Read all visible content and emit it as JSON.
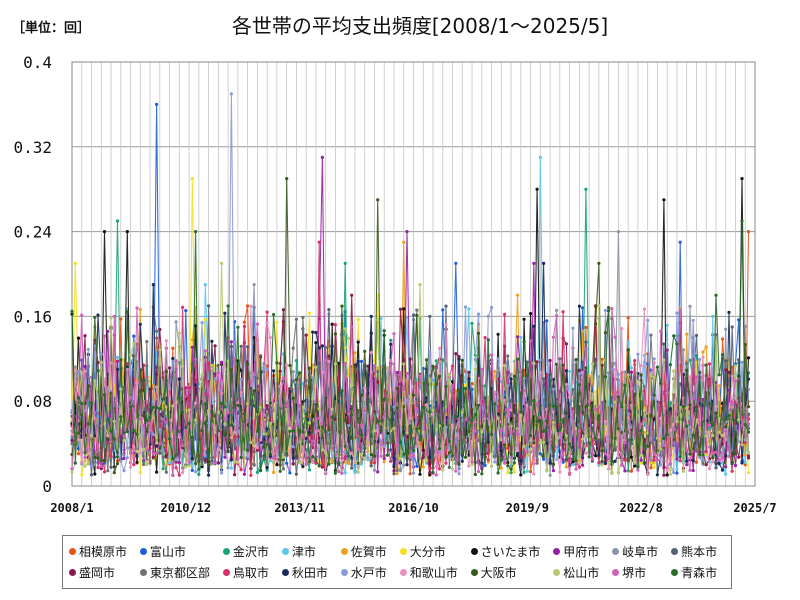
{
  "chart_data": {
    "type": "line",
    "unit_label": "［単位：回］",
    "title": "各世帯の平均支出頻度[2008/1～2025/5]",
    "xlabel": "",
    "ylabel": "",
    "ylim": [
      0,
      0.4
    ],
    "yticks": [
      "0",
      "0.08",
      "0.16",
      "0.24",
      "0.32",
      "0.4"
    ],
    "ytick_values": [
      0,
      0.08,
      0.16,
      0.24,
      0.32,
      0.4
    ],
    "xlim": [
      2008.0,
      2025.5
    ],
    "xticks": [
      "2008/1",
      "2010/12",
      "2013/11",
      "2016/10",
      "2019/9",
      "2022/8",
      "2025/7"
    ],
    "xtick_values": [
      2008.0,
      2010.917,
      2013.833,
      2016.75,
      2019.667,
      2022.583,
      2025.5
    ],
    "grid": true,
    "legend_position": "bottom",
    "series": [
      {
        "name": "相模原市",
        "color": "#e8541a",
        "peaks": [
          [
            2025.3,
            0.24
          ],
          [
            2010.6,
            0.13
          ],
          [
            2016.5,
            0.15
          ]
        ]
      },
      {
        "name": "富山市",
        "color": "#1f5fd6",
        "peaks": [
          [
            2010.2,
            0.36
          ],
          [
            2023.6,
            0.23
          ],
          [
            2017.8,
            0.21
          ]
        ]
      },
      {
        "name": "金沢市",
        "color": "#1aa37a",
        "peaks": [
          [
            2009.2,
            0.25
          ],
          [
            2021.2,
            0.28
          ],
          [
            2015.0,
            0.21
          ]
        ]
      },
      {
        "name": "津市",
        "color": "#5bc8e8",
        "peaks": [
          [
            2020.0,
            0.31
          ],
          [
            2024.4,
            0.16
          ],
          [
            2011.4,
            0.19
          ]
        ]
      },
      {
        "name": "佐賀市",
        "color": "#f0a020",
        "peaks": [
          [
            2016.5,
            0.23
          ],
          [
            2019.4,
            0.18
          ],
          [
            2008.6,
            0.15
          ]
        ]
      },
      {
        "name": "大分市",
        "color": "#f5e020",
        "peaks": [
          [
            2008.1,
            0.21
          ],
          [
            2011.1,
            0.29
          ],
          [
            2015.8,
            0.18
          ]
        ]
      },
      {
        "name": "さいたま市",
        "color": "#111111",
        "peaks": [
          [
            2008.8,
            0.24
          ],
          [
            2009.4,
            0.24
          ],
          [
            2019.9,
            0.28
          ],
          [
            2023.2,
            0.27
          ],
          [
            2025.2,
            0.29
          ]
        ]
      },
      {
        "name": "甲府市",
        "color": "#9a1fa8",
        "peaks": [
          [
            2014.4,
            0.31
          ],
          [
            2016.6,
            0.24
          ],
          [
            2019.8,
            0.21
          ]
        ]
      },
      {
        "name": "岐阜市",
        "color": "#8a96a8",
        "peaks": [
          [
            2022.0,
            0.24
          ],
          [
            2012.7,
            0.19
          ],
          [
            2018.4,
            0.13
          ]
        ]
      },
      {
        "name": "熊本市",
        "color": "#556070",
        "peaks": [
          [
            2017.2,
            0.16
          ],
          [
            2024.9,
            0.15
          ],
          [
            2010.4,
            0.13
          ]
        ]
      },
      {
        "name": "盛岡市",
        "color": "#8a1a4a",
        "peaks": [
          [
            2015.2,
            0.18
          ],
          [
            2021.4,
            0.17
          ],
          [
            2009.0,
            0.15
          ]
        ]
      },
      {
        "name": "東京都区部",
        "color": "#707070",
        "peaks": [
          [
            2013.7,
            0.13
          ],
          [
            2020.5,
            0.12
          ],
          [
            2023.9,
            0.14
          ]
        ]
      },
      {
        "name": "鳥取市",
        "color": "#d8306a",
        "peaks": [
          [
            2014.3,
            0.23
          ],
          [
            2012.0,
            0.14
          ],
          [
            2018.6,
            0.14
          ]
        ]
      },
      {
        "name": "秋田市",
        "color": "#1a2a5a",
        "peaks": [
          [
            2010.1,
            0.19
          ],
          [
            2020.1,
            0.21
          ],
          [
            2015.7,
            0.16
          ]
        ]
      },
      {
        "name": "水戸市",
        "color": "#8a9ad8",
        "peaks": [
          [
            2012.1,
            0.37
          ],
          [
            2018.9,
            0.12
          ],
          [
            2022.9,
            0.12
          ]
        ]
      },
      {
        "name": "和歌山市",
        "color": "#e890c0",
        "peaks": [
          [
            2013.1,
            0.14
          ],
          [
            2017.4,
            0.13
          ],
          [
            2021.9,
            0.11
          ]
        ]
      },
      {
        "name": "大阪市",
        "color": "#3a5a1a",
        "peaks": [
          [
            2013.5,
            0.29
          ],
          [
            2015.8,
            0.27
          ],
          [
            2021.5,
            0.21
          ]
        ]
      },
      {
        "name": "松山市",
        "color": "#b8c870",
        "peaks": [
          [
            2011.8,
            0.21
          ],
          [
            2021.5,
            0.17
          ],
          [
            2016.9,
            0.19
          ]
        ]
      },
      {
        "name": "堺市",
        "color": "#d060b8",
        "peaks": [
          [
            2009.1,
            0.16
          ],
          [
            2012.2,
            0.12
          ],
          [
            2018.5,
            0.11
          ]
        ]
      },
      {
        "name": "青森市",
        "color": "#2a6a2a",
        "peaks": [
          [
            2011.2,
            0.24
          ],
          [
            2025.2,
            0.25
          ],
          [
            2024.5,
            0.18
          ]
        ]
      }
    ]
  }
}
